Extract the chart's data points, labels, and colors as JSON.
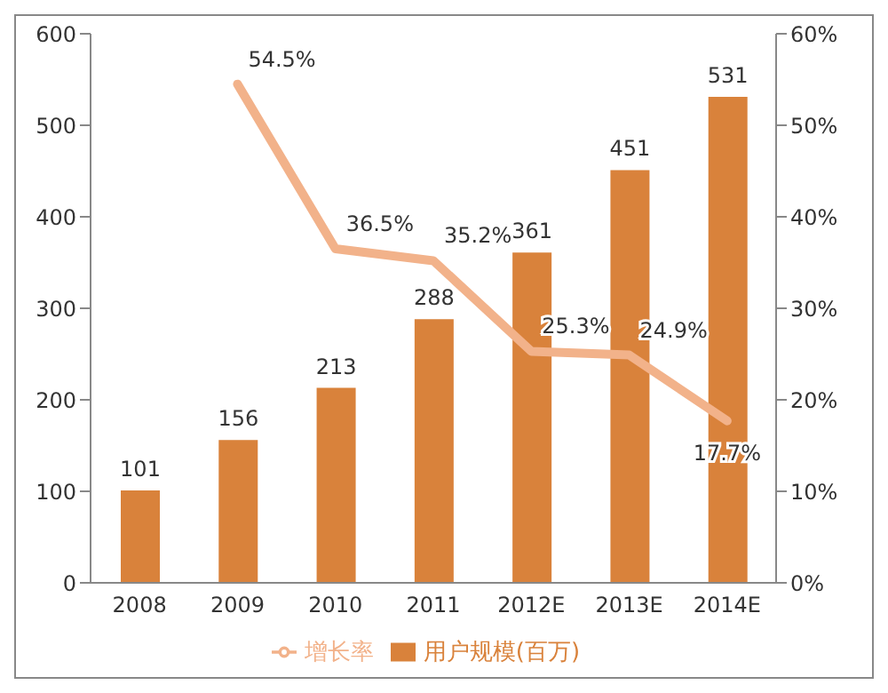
{
  "chart_data": {
    "type": "bar",
    "categories": [
      "2008",
      "2009",
      "2010",
      "2011",
      "2012E",
      "2013E",
      "2014E"
    ],
    "series": [
      {
        "name": "用户规模(百万)",
        "color": "#d9823b",
        "values": [
          101,
          156,
          213,
          288,
          361,
          451,
          531
        ],
        "value_labels": [
          "101",
          "156",
          "213",
          "288",
          "361",
          "451",
          "531"
        ]
      },
      {
        "name": "增长率",
        "type": "line",
        "axis": "y2",
        "color": "#f2b28a",
        "values": [
          null,
          54.5,
          36.5,
          35.2,
          25.3,
          24.9,
          17.7
        ],
        "value_labels": [
          null,
          "54.5%",
          "36.5%",
          "35.2%",
          "25.3%",
          "24.9%",
          "17.7%"
        ]
      }
    ],
    "ylim": [
      0,
      600
    ],
    "yticks": [
      0,
      100,
      200,
      300,
      400,
      500,
      600
    ],
    "y2lim": [
      0,
      60
    ],
    "y2ticks": [
      {
        "value": 0,
        "label": "0%"
      },
      {
        "value": 10,
        "label": "10%"
      },
      {
        "value": 20,
        "label": "20%"
      },
      {
        "value": 30,
        "label": "30%"
      },
      {
        "value": 40,
        "label": "40%"
      },
      {
        "value": 50,
        "label": "50%"
      },
      {
        "value": 60,
        "label": "60%"
      }
    ],
    "grid": false,
    "legend": "bottom",
    "marker": "none"
  }
}
